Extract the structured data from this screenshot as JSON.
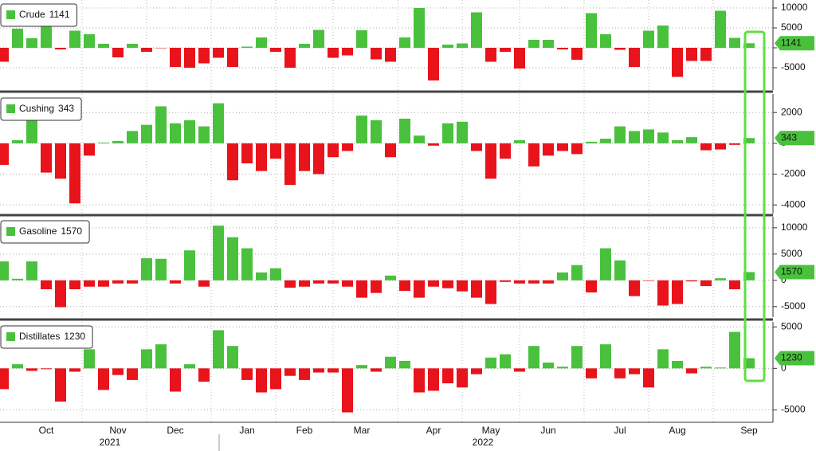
{
  "chart_data": [
    {
      "type": "bar",
      "series": [
        {
          "name": "Crude",
          "color": "#49c13d",
          "negative_color": "#e8131b",
          "values": [
            -3500,
            4800,
            2400,
            5600,
            -400,
            4300,
            3400,
            1000,
            -2400,
            1000,
            -1000,
            -100,
            -4800,
            -5000,
            -3900,
            -2500,
            -4800,
            300,
            2600,
            -1000,
            -5000,
            1000,
            4500,
            -2500,
            -1900,
            4400,
            -2900,
            -3500,
            2600,
            10000,
            -8200,
            800,
            1100,
            8900,
            -3500,
            -1000,
            -5200,
            2000,
            2000,
            -400,
            -3000,
            8700,
            3400,
            -500,
            -4800,
            4300,
            5600,
            -7300,
            -3300,
            -3300,
            9300,
            2500,
            1141
          ]
        }
      ],
      "ylim": [
        -10600,
        12000
      ],
      "yticks": [
        -5000,
        0,
        5000,
        10000
      ],
      "grid": true
    },
    {
      "type": "bar",
      "series": [
        {
          "name": "Cushing",
          "color": "#49c13d",
          "negative_color": "#e8131b",
          "values": [
            -1400,
            200,
            1500,
            -1900,
            -2300,
            -3900,
            -800,
            50,
            150,
            800,
            1200,
            2400,
            1300,
            1500,
            1100,
            2600,
            -2400,
            -1300,
            -1800,
            -1000,
            -2700,
            -1800,
            -2000,
            -900,
            -500,
            1800,
            1500,
            -900,
            1600,
            500,
            -150,
            1300,
            1400,
            -500,
            -2300,
            -1000,
            200,
            -1500,
            -800,
            -500,
            -700,
            100,
            300,
            1100,
            800,
            900,
            700,
            200,
            400,
            -450,
            -400,
            -100,
            343
          ]
        }
      ],
      "ylim": [
        -4560,
        3200
      ],
      "yticks": [
        -4000,
        -2000,
        0,
        2000
      ],
      "grid": true
    },
    {
      "type": "bar",
      "series": [
        {
          "name": "Gasoline",
          "color": "#49c13d",
          "negative_color": "#e8131b",
          "values": [
            3600,
            300,
            3600,
            -1700,
            -5100,
            -1700,
            -1200,
            -1200,
            -600,
            -600,
            4200,
            4100,
            -600,
            5700,
            -1200,
            10400,
            8200,
            6100,
            1500,
            2300,
            -1400,
            -1200,
            -600,
            -600,
            -1200,
            -3300,
            -2400,
            900,
            -2000,
            -3300,
            -1200,
            -1500,
            -2100,
            -3300,
            -4500,
            -300,
            -600,
            -600,
            -600,
            1500,
            2900,
            -2300,
            6100,
            3800,
            -3000,
            -100,
            -4800,
            -4500,
            -200,
            -1100,
            400,
            -1700,
            1570
          ]
        }
      ],
      "ylim": [
        -7000,
        12100
      ],
      "yticks": [
        -5000,
        0,
        5000,
        10000
      ],
      "grid": true
    },
    {
      "type": "bar",
      "series": [
        {
          "name": "Distillates",
          "color": "#49c13d",
          "negative_color": "#e8131b",
          "values": [
            -2500,
            500,
            -300,
            -100,
            -4000,
            -400,
            2300,
            -2600,
            -800,
            -1400,
            2300,
            2900,
            -2800,
            500,
            -1600,
            4600,
            2700,
            -1400,
            -2900,
            -2500,
            -900,
            -1400,
            -500,
            -500,
            -5300,
            400,
            -400,
            1400,
            900,
            -2900,
            -2700,
            -1800,
            -2300,
            -700,
            1300,
            1700,
            -400,
            2700,
            700,
            200,
            2700,
            -1200,
            2900,
            -1200,
            -700,
            -2300,
            2300,
            900,
            -600,
            200,
            100,
            4400,
            1230
          ]
        }
      ],
      "ylim": [
        -6500,
        5600
      ],
      "yticks": [
        -5000,
        0,
        5000
      ],
      "grid": true,
      "categories": [
        null,
        null,
        null,
        "Oct",
        null,
        null,
        null,
        null,
        "Nov",
        null,
        null,
        null,
        "Dec",
        null,
        null,
        null,
        null,
        "Jan",
        null,
        null,
        null,
        "Feb",
        null,
        null,
        null,
        "Mar",
        null,
        null,
        null,
        null,
        "Apr",
        null,
        null,
        null,
        "May",
        null,
        null,
        null,
        "Jun",
        null,
        null,
        null,
        null,
        "Jul",
        null,
        null,
        null,
        "Aug",
        null,
        null,
        null,
        null,
        "Sep"
      ],
      "year_labels": [
        "2021",
        "2022"
      ]
    }
  ]
}
